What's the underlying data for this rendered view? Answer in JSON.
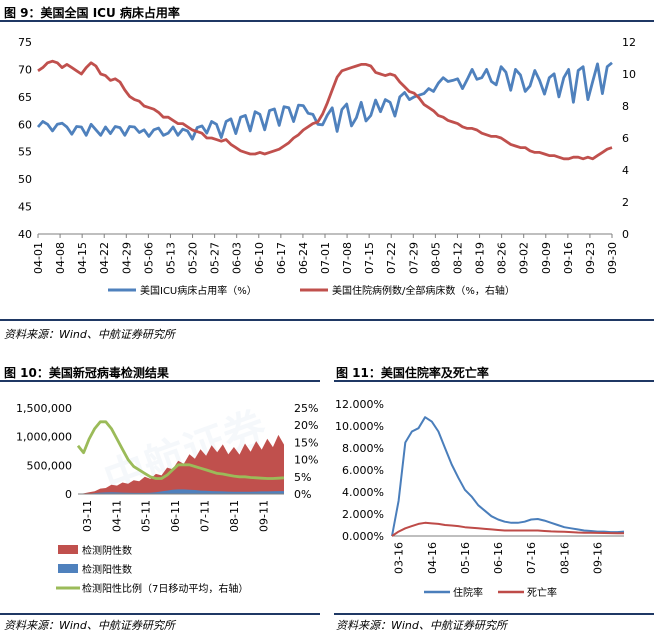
{
  "fig9": {
    "title": "图 9：美国全国 ICU 病床占用率",
    "source": "资料来源：Wind、中航证券研究所"
  },
  "fig10": {
    "title": "图 10：美国新冠病毒检测结果"
  },
  "fig11": {
    "title": "图 11：美国住院率及死亡率",
    "source": "资料来源：Wind、中航证券研究所"
  },
  "bottom_left_source": "资料来源：Wind、中航证券研究所",
  "colors": {
    "blue": "#4f81bd",
    "red": "#c0504d",
    "green": "#9bbb59",
    "navy": "#1f3864",
    "fig11_blue": "#4a7ebb",
    "fig11_red": "#be4b48"
  },
  "chart_data": [
    {
      "id": "fig9",
      "type": "line",
      "title": "美国全国ICU病床占用率",
      "x_ticks": [
        "04-01",
        "04-08",
        "04-15",
        "04-22",
        "04-29",
        "05-06",
        "05-13",
        "05-20",
        "05-27",
        "06-03",
        "06-10",
        "06-17",
        "06-24",
        "07-01",
        "07-08",
        "07-15",
        "07-22",
        "07-29",
        "08-05",
        "08-12",
        "08-19",
        "08-26",
        "09-02",
        "09-09",
        "09-16",
        "09-23",
        "09-30"
      ],
      "ylim_left": [
        40,
        75
      ],
      "y_ticks_left": [
        40,
        45,
        50,
        55,
        60,
        65,
        70,
        75
      ],
      "ylim_right": [
        0,
        12
      ],
      "y_ticks_right": [
        0,
        2,
        4,
        6,
        8,
        10,
        12
      ],
      "series": [
        {
          "name": "美国ICU病床占用率（%）",
          "axis": "left",
          "values": [
            59.5,
            60.5,
            60.0,
            58.8,
            60.0,
            60.2,
            59.5,
            58.2,
            59.6,
            59.5,
            58.0,
            60.0,
            59.0,
            58.0,
            59.5,
            58.3,
            59.6,
            59.4,
            58.0,
            59.6,
            59.5,
            58.5,
            59.0,
            57.8,
            59.0,
            59.3,
            58.0,
            58.4,
            59.5,
            58.0,
            59.1,
            58.8,
            57.3,
            59.4,
            59.7,
            58.4,
            60.5,
            60.0,
            57.6,
            60.5,
            61.0,
            58.3,
            61.3,
            61.6,
            58.8,
            62.3,
            61.8,
            59.0,
            62.5,
            62.8,
            59.8,
            63.2,
            63.0,
            60.5,
            63.5,
            63.4,
            62.0,
            61.8,
            60.0,
            59.9,
            61.7,
            63.0,
            58.7,
            62.7,
            63.7,
            59.7,
            61.2,
            64.0,
            60.6,
            61.6,
            64.4,
            62.3,
            64.5,
            64.0,
            61.5,
            65.0,
            65.8,
            64.5,
            65.0,
            65.3,
            65.6,
            66.5,
            66.0,
            67.5,
            68.5,
            67.8,
            68.0,
            68.3,
            66.5,
            68.2,
            70.0,
            68.2,
            68.5,
            70.0,
            67.8,
            67.2,
            70.5,
            69.5,
            66.2,
            70.0,
            69.0,
            66.0,
            67.0,
            69.8,
            68.0,
            65.5,
            68.5,
            69.2,
            65.0,
            68.5,
            70.0,
            64.0,
            69.8,
            70.5,
            64.5,
            67.8,
            71.0,
            65.6,
            70.5,
            71.2
          ],
          "color": "#4f81bd"
        },
        {
          "name": "美国住院病例数/全部病床数（%，右轴）",
          "axis": "right",
          "values": [
            10.2,
            10.4,
            10.7,
            10.8,
            10.7,
            10.4,
            10.6,
            10.4,
            10.2,
            10.0,
            10.4,
            10.7,
            10.5,
            10.0,
            9.9,
            9.6,
            9.7,
            9.5,
            9.0,
            8.6,
            8.4,
            8.3,
            8.0,
            7.9,
            7.8,
            7.6,
            7.3,
            7.3,
            7.1,
            6.9,
            6.9,
            6.7,
            6.5,
            6.4,
            6.3,
            6.0,
            6.0,
            5.9,
            5.8,
            5.9,
            5.6,
            5.4,
            5.2,
            5.1,
            5.0,
            5.0,
            5.1,
            5.0,
            5.1,
            5.2,
            5.3,
            5.5,
            5.7,
            6.0,
            6.2,
            6.5,
            6.7,
            6.9,
            7.0,
            7.5,
            8.2,
            9.0,
            9.8,
            10.2,
            10.3,
            10.4,
            10.5,
            10.6,
            10.6,
            10.5,
            10.1,
            10.0,
            9.9,
            10.0,
            9.9,
            9.5,
            9.2,
            8.9,
            8.8,
            8.5,
            8.1,
            7.9,
            7.7,
            7.4,
            7.3,
            7.1,
            7.0,
            6.9,
            6.7,
            6.6,
            6.6,
            6.5,
            6.3,
            6.2,
            6.1,
            6.1,
            6.0,
            5.8,
            5.6,
            5.5,
            5.4,
            5.4,
            5.2,
            5.1,
            5.1,
            5.0,
            4.9,
            4.9,
            4.8,
            4.7,
            4.7,
            4.8,
            4.8,
            4.7,
            4.8,
            4.7,
            4.9,
            5.1,
            5.3,
            5.4
          ],
          "color": "#c0504d"
        }
      ]
    },
    {
      "id": "fig10",
      "type": "area",
      "title": "美国新冠病毒检测结果",
      "x_ticks": [
        "03-11",
        "04-11",
        "05-11",
        "06-11",
        "07-11",
        "08-11",
        "09-11"
      ],
      "ylim_left": [
        0,
        1500000
      ],
      "y_ticks_left": [
        "0",
        "500,000",
        "1,000,000",
        "1,500,000"
      ],
      "ylim_right": [
        0,
        25
      ],
      "y_ticks_right": [
        "0%",
        "5%",
        "10%",
        "15%",
        "20%",
        "25%"
      ],
      "series": [
        {
          "name": "检测阴性数",
          "axis": "left",
          "values": [
            0,
            10000,
            25000,
            45000,
            70000,
            100000,
            130000,
            150000,
            175000,
            195000,
            220000,
            250000,
            280000,
            300000,
            320000,
            350000,
            400000,
            450000,
            500000,
            560000,
            620000,
            680000,
            720000,
            760000,
            800000,
            840000,
            820000,
            800000,
            780000,
            800000,
            840000,
            860000,
            880000,
            900000,
            920000,
            950000,
            980000,
            1000000
          ],
          "color": "#c0504d"
        },
        {
          "name": "检测阳性数",
          "axis": "left",
          "values": [
            0,
            2000,
            6000,
            15000,
            25000,
            28000,
            30000,
            28000,
            25000,
            22000,
            20000,
            20000,
            20000,
            22000,
            30000,
            45000,
            60000,
            75000,
            80000,
            80000,
            75000,
            70000,
            60000,
            55000,
            50000,
            48000,
            45000,
            42000,
            40000,
            38000,
            40000,
            40000,
            42000,
            45000,
            45000,
            48000,
            50000,
            50000
          ],
          "color": "#4f81bd"
        },
        {
          "name": "检测阳性比例（7日移动平均，右轴）",
          "axis": "right",
          "values": [
            14,
            12,
            16,
            19,
            21,
            21,
            19,
            16,
            13,
            10,
            8,
            7,
            6,
            5,
            4.5,
            4.5,
            5.5,
            7,
            8.5,
            8.5,
            8.5,
            8,
            7.5,
            7,
            6.5,
            6,
            5.8,
            5.5,
            5.2,
            5,
            5,
            4.8,
            4.7,
            4.6,
            4.5,
            4.5,
            4.6,
            4.7
          ],
          "color": "#9bbb59"
        }
      ]
    },
    {
      "id": "fig11",
      "type": "line",
      "title": "美国住院率及死亡率",
      "x_ticks": [
        "03-16",
        "04-16",
        "05-16",
        "06-16",
        "07-16",
        "08-16",
        "09-16"
      ],
      "ylim": [
        0,
        12
      ],
      "y_ticks": [
        "0.000%",
        "2.000%",
        "4.000%",
        "6.000%",
        "8.000%",
        "10.000%",
        "12.000%"
      ],
      "series": [
        {
          "name": "住院率",
          "values": [
            0,
            3.2,
            8.5,
            9.5,
            9.8,
            10.8,
            10.4,
            9.5,
            8,
            6.5,
            5.3,
            4.2,
            3.6,
            2.8,
            2.3,
            1.8,
            1.5,
            1.3,
            1.2,
            1.2,
            1.3,
            1.5,
            1.55,
            1.4,
            1.2,
            1,
            0.8,
            0.7,
            0.6,
            0.5,
            0.45,
            0.4,
            0.4,
            0.35,
            0.35,
            0.4
          ],
          "color": "#4a7ebb"
        },
        {
          "name": "死亡率",
          "values": [
            0,
            0.4,
            0.7,
            0.9,
            1.1,
            1.2,
            1.15,
            1.1,
            1.0,
            0.95,
            0.9,
            0.8,
            0.75,
            0.7,
            0.65,
            0.6,
            0.55,
            0.5,
            0.5,
            0.5,
            0.5,
            0.5,
            0.5,
            0.45,
            0.42,
            0.4,
            0.38,
            0.35,
            0.32,
            0.3,
            0.3,
            0.28,
            0.27,
            0.26,
            0.25,
            0.25
          ],
          "color": "#be4b48"
        }
      ]
    }
  ]
}
